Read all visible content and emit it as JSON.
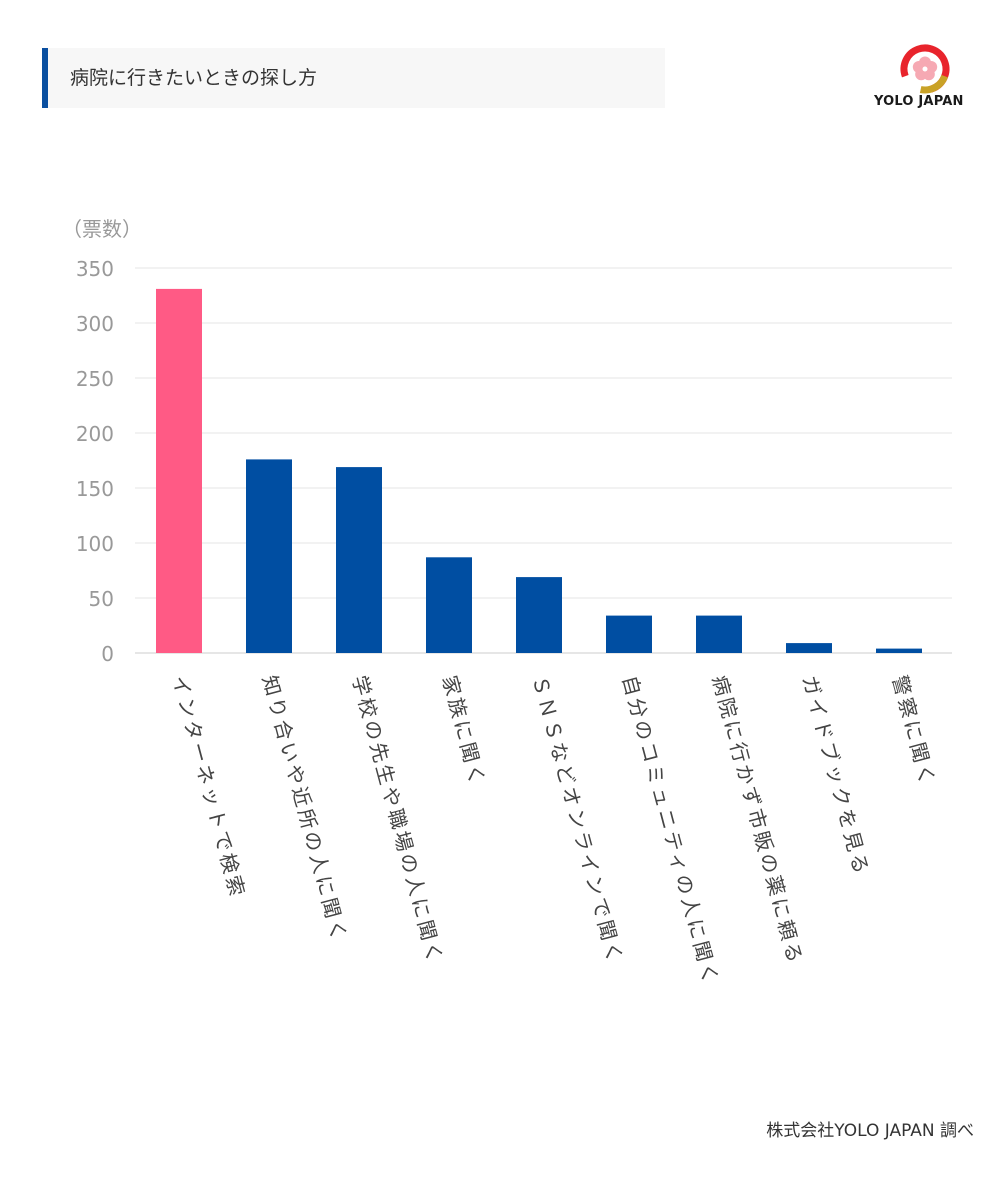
{
  "header": {
    "title": "病院に行きたいときの探し方"
  },
  "logo": {
    "text": "YOLO JAPAN",
    "colors": {
      "red": "#e8242c",
      "gold": "#c9a227",
      "pink": "#f6a9b3"
    },
    "icon": "sakura-circle-icon"
  },
  "colors": {
    "highlight": "#ff5a85",
    "bar": "#004ea2",
    "grid": "#e6e6e6",
    "axis_text": "#999999",
    "title_accent": "#0a4fa0"
  },
  "chart_data": {
    "type": "bar",
    "ylabel": "（票数）",
    "xlabel": "",
    "ylim": [
      0,
      350
    ],
    "yticks": [
      0,
      50,
      100,
      150,
      200,
      250,
      300,
      350
    ],
    "grid": true,
    "categories": [
      "インターネットで検索",
      "知り合いや近所の人に聞く",
      "学校の先生や職場の人に聞く",
      "家族に聞く",
      "ＳＮＳなどオンラインで聞く",
      "自分のコミュニティの人に聞く",
      "病院に行かず市販の薬に頼る",
      "ガイドブックを見る",
      "警察に聞く"
    ],
    "values": [
      331,
      176,
      169,
      87,
      69,
      34,
      34,
      9,
      4
    ],
    "highlight_index": 0
  },
  "footer": {
    "source": "株式会社YOLO JAPAN 調べ"
  }
}
